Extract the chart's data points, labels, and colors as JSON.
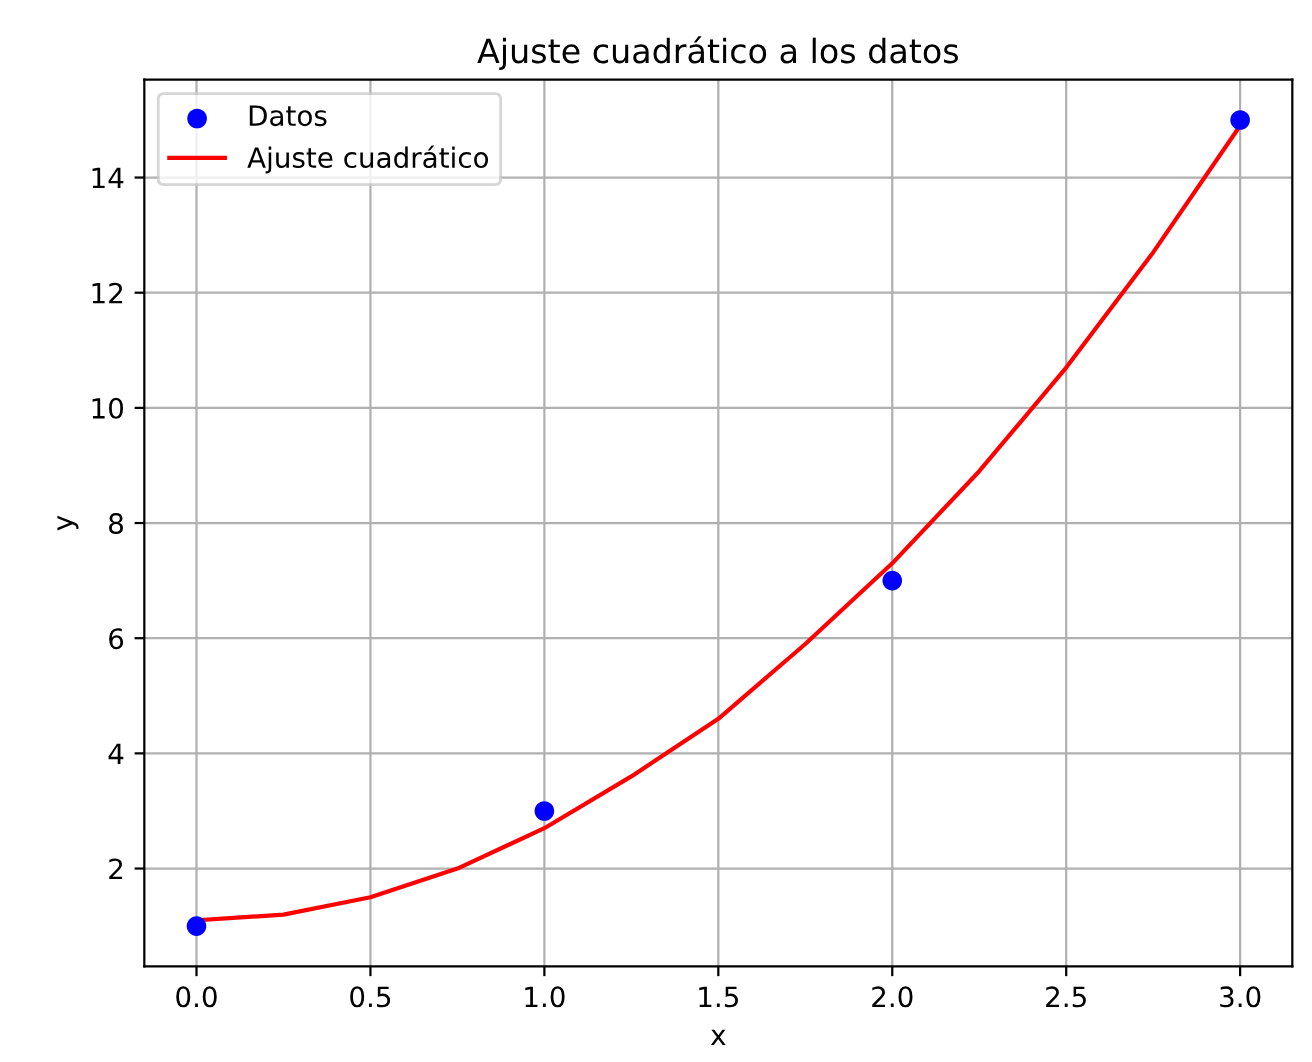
{
  "chart_data": {
    "type": "scatter",
    "title": "Ajuste cuadrático a los datos",
    "xlabel": "x",
    "ylabel": "y",
    "series": [
      {
        "name": "Datos",
        "color": "#0000ff",
        "marker": "circle",
        "x": [
          0,
          1,
          2,
          3
        ],
        "values": [
          1,
          3,
          7,
          15
        ]
      },
      {
        "name": "Ajuste cuadrático",
        "type": "line",
        "color": "#ff0000",
        "marker": "none",
        "line_style": "solid",
        "x": [
          0,
          0.25,
          0.5,
          0.75,
          1,
          1.25,
          1.5,
          1.75,
          2,
          2.25,
          2.5,
          2.75,
          3
        ],
        "values": [
          1.1,
          1.2,
          1.5,
          2.0,
          2.7,
          3.6,
          4.6,
          5.9,
          7.3,
          8.9,
          10.7,
          12.7,
          14.9
        ]
      }
    ],
    "xlim": [
      -0.15,
      3.15
    ],
    "ylim": [
      0.3,
      15.7
    ],
    "xticks": [
      {
        "value": 0,
        "label": "0.0"
      },
      0.5,
      {
        "value": 1,
        "label": "1.0"
      },
      1.5,
      {
        "value": 2,
        "label": "2.0"
      },
      2.5,
      {
        "value": 3,
        "label": "3.0"
      }
    ],
    "yticks": [
      2,
      4,
      6,
      8,
      10,
      12,
      14
    ],
    "grid": true,
    "legend": "top left"
  }
}
